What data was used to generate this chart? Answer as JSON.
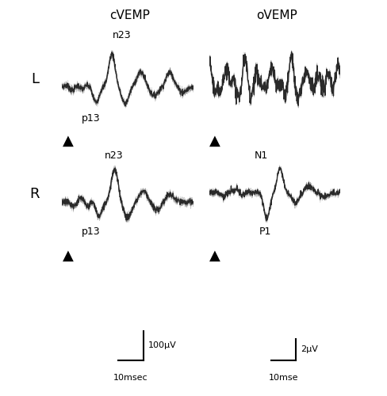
{
  "title_cvemp": "cVEMP",
  "title_ovemp": "oVEMP",
  "label_L": "L",
  "label_R": "R",
  "label_n23_top": "n23",
  "label_p13_top": "p13",
  "label_n23_bot": "n23",
  "label_p13_bot": "p13",
  "label_N1": "N1",
  "label_P1": "P1",
  "scale_cvemp_v": "100μV",
  "scale_cvemp_t": "10msec",
  "scale_ovemp_v": "2μV",
  "scale_ovemp_t": "10mse",
  "background": "#ffffff",
  "line_color": "#2a2a2a",
  "line_width": 1.0
}
